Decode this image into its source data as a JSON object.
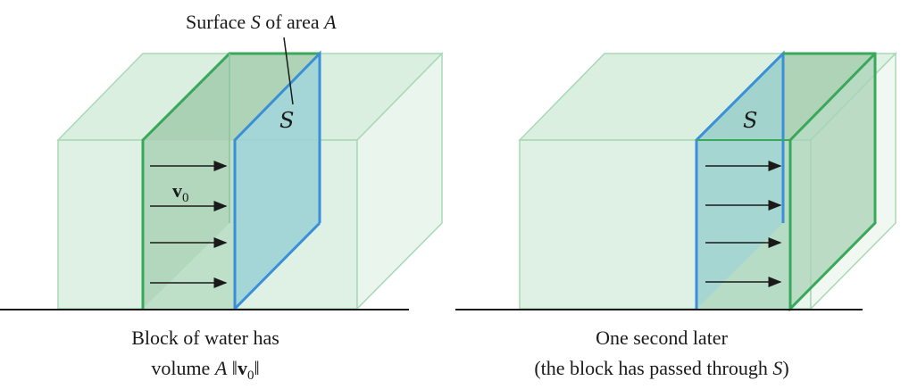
{
  "left_panel": {
    "top_label": {
      "prefix": "Surface ",
      "symbol": "S",
      "middle": " of area ",
      "area": "A"
    },
    "surface_symbol": "S",
    "velocity_label": {
      "bold": "v",
      "subscript": "0"
    },
    "caption_line1": "Block of water has",
    "caption_line2": {
      "prefix": "volume ",
      "area": "A",
      "bars_open": " ‖",
      "bold": "v",
      "subscript": "0",
      "bars_close": "‖"
    }
  },
  "right_panel": {
    "surface_symbol": "S",
    "caption_line1": "One second later",
    "caption_line2": {
      "prefix": "(the block has passed through ",
      "symbol": "S",
      "suffix": ")"
    }
  },
  "colors": {
    "water_fill": "#cfe8d6",
    "water_edge": "#9fd2ae",
    "green_edge": "#3aa85a",
    "surface_fill": "#9cd4d6",
    "surface_edge": "#3a8fd6",
    "ground": "#1a1a1a"
  }
}
